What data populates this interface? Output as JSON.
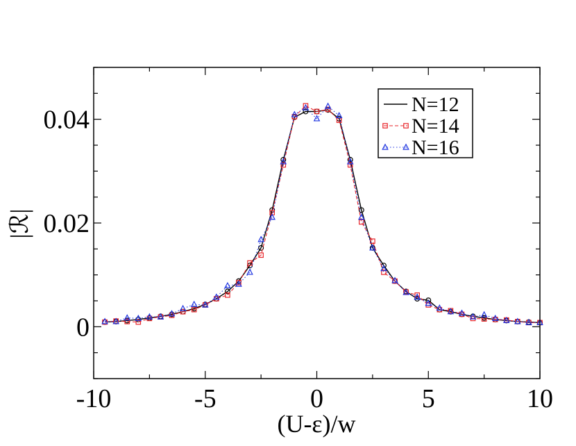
{
  "chart_data": {
    "type": "line",
    "title": "",
    "xlabel": "(U-ε)/w",
    "ylabel": "|ℛ|",
    "xlim": [
      -10,
      10
    ],
    "ylim": [
      -0.01,
      0.05
    ],
    "xticks": [
      {
        "value": -10,
        "label": "-10"
      },
      {
        "value": -5,
        "label": "-5"
      },
      {
        "value": 0,
        "label": "0"
      },
      {
        "value": 5,
        "label": "5"
      },
      {
        "value": 10,
        "label": "10"
      }
    ],
    "yticks": [
      {
        "value": 0,
        "label": "0"
      },
      {
        "value": 0.02,
        "label": "0.02"
      },
      {
        "value": 0.04,
        "label": "0.04"
      }
    ],
    "legend_position": "top-right",
    "series": [
      {
        "name": "N=12",
        "color": "#000000",
        "line": "solid",
        "marker": "circle",
        "x": [
          -9.5,
          -9,
          -8.5,
          -8,
          -7.5,
          -7,
          -6.5,
          -6,
          -5.5,
          -5,
          -4.5,
          -4,
          -3.5,
          -3,
          -2.5,
          -2,
          -1.5,
          -1,
          -0.5,
          0,
          0.5,
          1,
          1.5,
          2,
          2.5,
          3,
          3.5,
          4,
          4.5,
          5,
          5.5,
          6,
          6.5,
          7,
          7.5,
          8,
          8.5,
          9,
          9.5,
          10
        ],
        "values": [
          0.0009,
          0.001,
          0.0012,
          0.0014,
          0.0017,
          0.002,
          0.0024,
          0.0029,
          0.0035,
          0.0043,
          0.0054,
          0.0068,
          0.0088,
          0.0118,
          0.0152,
          0.0225,
          0.0322,
          0.0404,
          0.0415,
          0.0415,
          0.0418,
          0.0401,
          0.0322,
          0.0225,
          0.0152,
          0.0118,
          0.0088,
          0.0068,
          0.0054,
          0.0051,
          0.0033,
          0.0029,
          0.0024,
          0.002,
          0.0017,
          0.0014,
          0.0012,
          0.001,
          0.0009,
          0.0008
        ]
      },
      {
        "name": "N=14",
        "color": "#e8252a",
        "line": "dashed",
        "marker": "square",
        "x": [
          -9.5,
          -9,
          -8.5,
          -8,
          -7.5,
          -7,
          -6.5,
          -6,
          -5.5,
          -5,
          -4.5,
          -4,
          -3.5,
          -3,
          -2.5,
          -2,
          -1.5,
          -1,
          -0.5,
          0,
          0.5,
          1,
          1.5,
          2,
          2.5,
          3,
          3.5,
          4,
          4.5,
          5,
          5.5,
          6,
          6.5,
          7,
          7.5,
          8,
          8.5,
          9,
          9.5,
          10
        ],
        "values": [
          0.0009,
          0.0011,
          0.001,
          0.0009,
          0.0016,
          0.0019,
          0.0022,
          0.0029,
          0.0033,
          0.0042,
          0.0054,
          0.0061,
          0.0085,
          0.0123,
          0.0138,
          0.022,
          0.0312,
          0.0405,
          0.0426,
          0.0415,
          0.0419,
          0.0398,
          0.0312,
          0.0202,
          0.0165,
          0.0105,
          0.0088,
          0.0067,
          0.0061,
          0.0042,
          0.0033,
          0.0031,
          0.0024,
          0.0016,
          0.0015,
          0.0014,
          0.0013,
          0.001,
          0.0008,
          0.0008
        ]
      },
      {
        "name": "N=16",
        "color": "#1f35e0",
        "line": "dotted",
        "marker": "triangle",
        "x": [
          -9.5,
          -9,
          -8.5,
          -8,
          -7.5,
          -7,
          -6.5,
          -6,
          -5.5,
          -5,
          -4.5,
          -4,
          -3.5,
          -3,
          -2.5,
          -2,
          -1.5,
          -1,
          -0.5,
          0,
          0.5,
          1,
          1.5,
          2,
          2.5,
          3,
          3.5,
          4,
          4.5,
          5,
          5.5,
          6,
          6.5,
          7,
          7.5,
          8,
          8.5,
          9,
          9.5,
          10
        ],
        "values": [
          0.001,
          0.001,
          0.0017,
          0.0016,
          0.0019,
          0.0019,
          0.0025,
          0.0035,
          0.0043,
          0.0042,
          0.0057,
          0.0079,
          0.0082,
          0.0105,
          0.0168,
          0.0211,
          0.0318,
          0.0409,
          0.0422,
          0.0401,
          0.0425,
          0.0407,
          0.0318,
          0.0211,
          0.0152,
          0.0112,
          0.0089,
          0.0066,
          0.0057,
          0.0045,
          0.0036,
          0.0029,
          0.0026,
          0.0019,
          0.0023,
          0.0016,
          0.0012,
          0.001,
          0.0008,
          0.0008
        ]
      }
    ]
  }
}
